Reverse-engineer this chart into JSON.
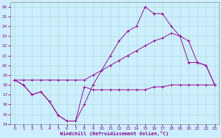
{
  "xlabel": "Windchill (Refroidissement éolien,°C)",
  "bg_color": "#cceeff",
  "grid_color": "#aaddcc",
  "line_color": "#990099",
  "xlim": [
    -0.5,
    23.5
  ],
  "ylim": [
    14,
    26.5
  ],
  "yticks": [
    14,
    15,
    16,
    17,
    18,
    19,
    20,
    21,
    22,
    23,
    24,
    25,
    26
  ],
  "xticks": [
    0,
    1,
    2,
    3,
    4,
    5,
    6,
    7,
    8,
    9,
    10,
    11,
    12,
    13,
    14,
    15,
    16,
    17,
    18,
    19,
    20,
    21,
    22,
    23
  ],
  "line1_x": [
    0,
    1,
    2,
    3,
    4,
    5,
    6,
    7,
    8,
    9,
    10,
    11,
    12,
    13,
    14,
    15,
    16,
    17,
    18,
    19,
    20,
    21,
    22,
    23
  ],
  "line1_y": [
    18.5,
    18.0,
    17.0,
    17.3,
    16.3,
    14.9,
    14.3,
    14.3,
    17.8,
    17.5,
    17.5,
    17.5,
    17.5,
    17.5,
    17.5,
    17.5,
    17.8,
    17.8,
    18.0,
    18.0,
    18.0,
    18.0,
    18.0,
    18.0
  ],
  "line2_x": [
    0,
    1,
    2,
    3,
    4,
    5,
    6,
    7,
    8,
    9,
    10,
    11,
    12,
    13,
    14,
    15,
    16,
    17,
    18,
    19,
    20,
    21,
    22,
    23
  ],
  "line2_y": [
    18.5,
    18.0,
    17.0,
    17.3,
    16.3,
    14.9,
    14.3,
    14.3,
    16.0,
    18.0,
    19.5,
    21.0,
    22.5,
    23.5,
    24.0,
    26.0,
    25.3,
    25.3,
    24.0,
    23.0,
    20.3,
    20.3,
    20.0,
    18.0
  ],
  "line3_x": [
    0,
    1,
    2,
    3,
    4,
    5,
    6,
    7,
    8,
    9,
    10,
    11,
    12,
    13,
    14,
    15,
    16,
    17,
    18,
    19,
    20,
    21,
    22,
    23
  ],
  "line3_y": [
    18.5,
    18.5,
    18.5,
    18.5,
    18.5,
    18.5,
    18.5,
    18.5,
    18.5,
    19.0,
    19.5,
    20.0,
    20.5,
    21.0,
    21.5,
    22.0,
    22.5,
    22.8,
    23.3,
    23.0,
    22.5,
    20.3,
    20.0,
    18.0
  ]
}
